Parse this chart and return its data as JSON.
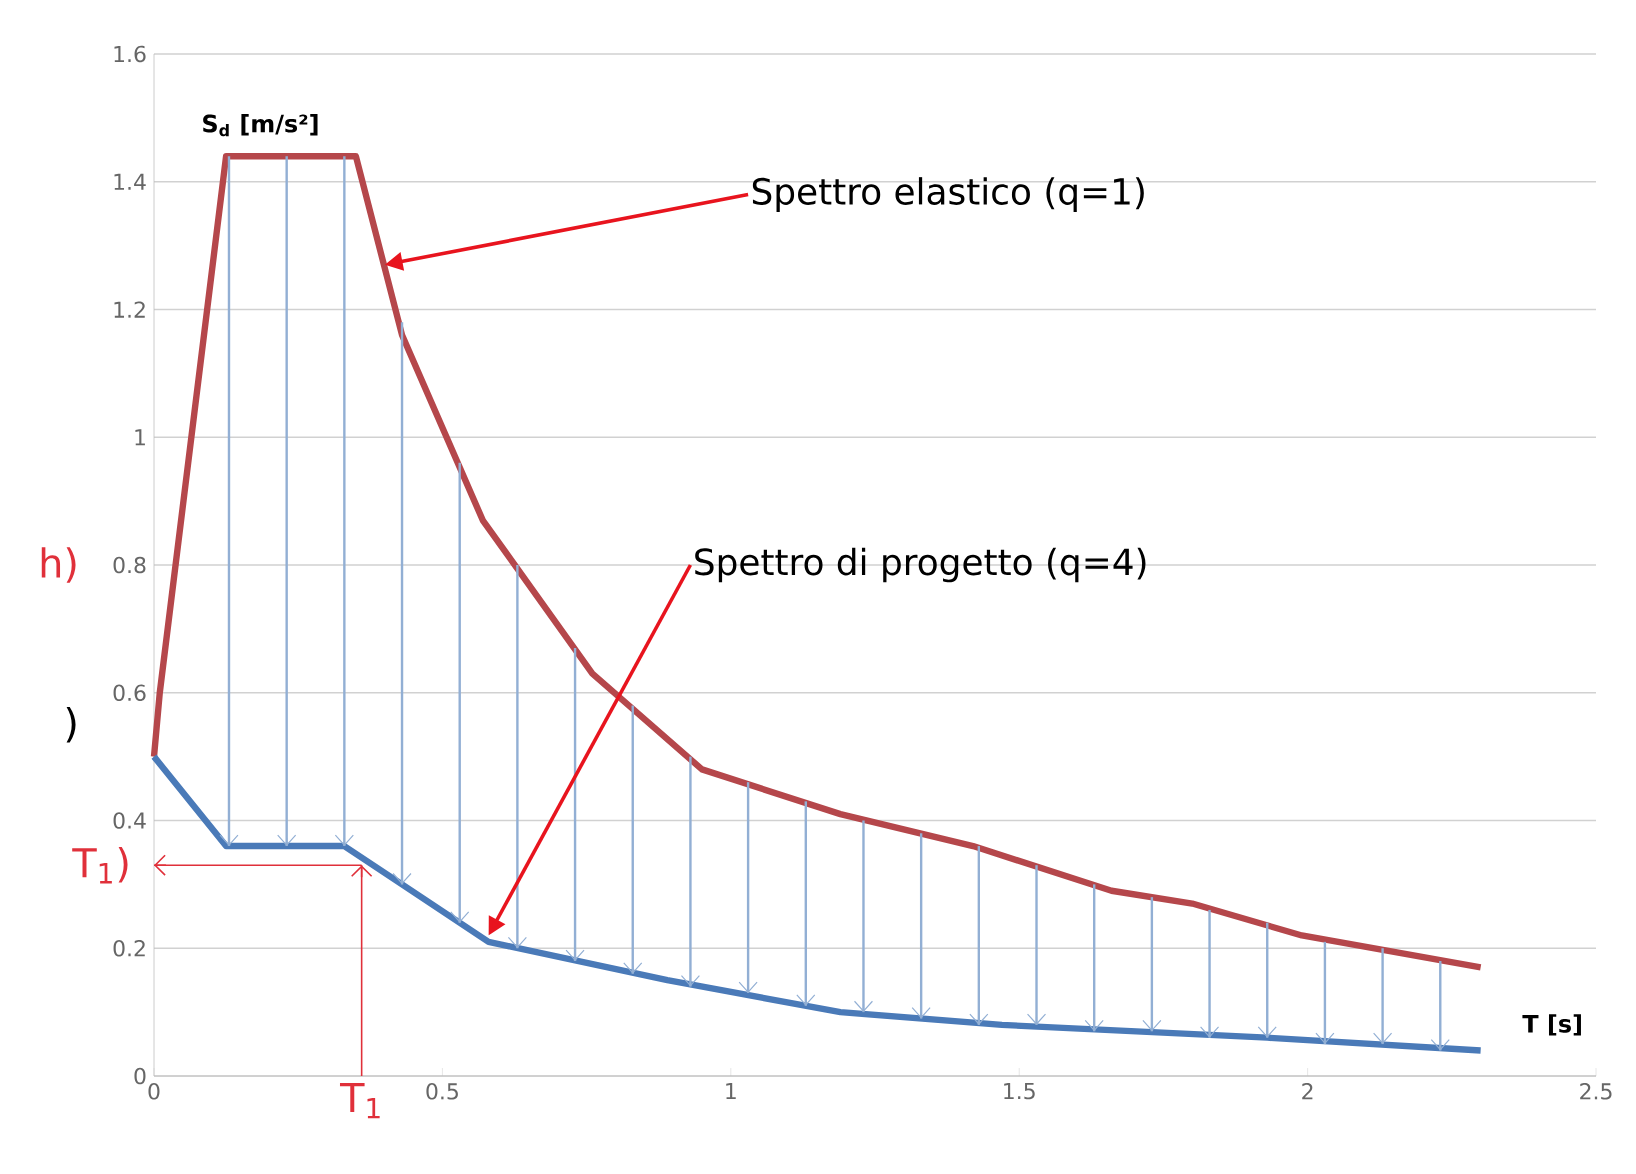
{
  "chart_data": {
    "type": "line",
    "xlabel": "T [s]",
    "ylabel": "S$_{d}$ [m/s²]",
    "xlim": [
      0,
      2.5
    ],
    "ylim": [
      0,
      1.6
    ],
    "xticks": [
      0,
      0.5,
      1,
      1.5,
      2,
      2.5
    ],
    "yticks": [
      0,
      0.2,
      0.4,
      0.6,
      0.8,
      1,
      1.2,
      1.4,
      1.6
    ],
    "grid": "y",
    "series": [
      {
        "color": "#b5474b",
        "x": [
          0,
          0.01,
          0.125,
          0.35,
          0.43,
          0.57,
          0.76,
          0.95,
          1.19,
          1.42,
          1.66,
          1.8,
          1.99,
          2.3
        ],
        "values": [
          0.5,
          0.6,
          1.44,
          1.44,
          1.16,
          0.87,
          0.63,
          0.48,
          0.41,
          0.36,
          0.29,
          0.27,
          0.22,
          0.17
        ]
      },
      {
        "color": "#4a7ab8",
        "x": [
          0,
          0.125,
          0.33,
          0.43,
          0.58,
          0.89,
          1.19,
          1.47,
          1.93,
          2.3
        ],
        "values": [
          0.5,
          0.36,
          0.36,
          0.3,
          0.21,
          0.15,
          0.1,
          0.08,
          0.06,
          0.04
        ]
      },
      {
        "type": "bar",
        "color": "#92afd4",
        "x": [
          0.13,
          0.23,
          0.33,
          0.43,
          0.53,
          0.63,
          0.73,
          0.83,
          0.93,
          1.03,
          1.13,
          1.23,
          1.33,
          1.43,
          1.53,
          1.63,
          1.73,
          1.83,
          1.93,
          2.03,
          2.13,
          2.23
        ],
        "base": [
          0.36,
          0.36,
          0.36,
          0.3,
          0.24,
          0.2,
          0.18,
          0.16,
          0.14,
          0.13,
          0.11,
          0.1,
          0.09,
          0.08,
          0.08,
          0.07,
          0.07,
          0.06,
          0.06,
          0.05,
          0.05,
          0.04
        ],
        "values": [
          1.08,
          1.08,
          1.08,
          0.88,
          0.72,
          0.6,
          0.49,
          0.42,
          0.36,
          0.33,
          0.32,
          0.3,
          0.29,
          0.28,
          0.25,
          0.23,
          0.21,
          0.2,
          0.18,
          0.16,
          0.15,
          0.14
        ]
      }
    ],
    "ref_lines": [
      {
        "axis": "x",
        "value": 0.36,
        "label": "T$_{1}$",
        "color": "#e0303a"
      },
      {
        "axis": "y",
        "value": 0.33,
        "label": "T$_{1}$)",
        "color": "#e0303a"
      }
    ],
    "annotations": [
      {
        "text": "Spettro elastico (q=1)",
        "x": 0.4,
        "y": 1.27
      },
      {
        "text": "Spettro di progetto (q=4)",
        "x": 0.58,
        "y": 0.22
      },
      "h)",
      ")"
    ]
  }
}
